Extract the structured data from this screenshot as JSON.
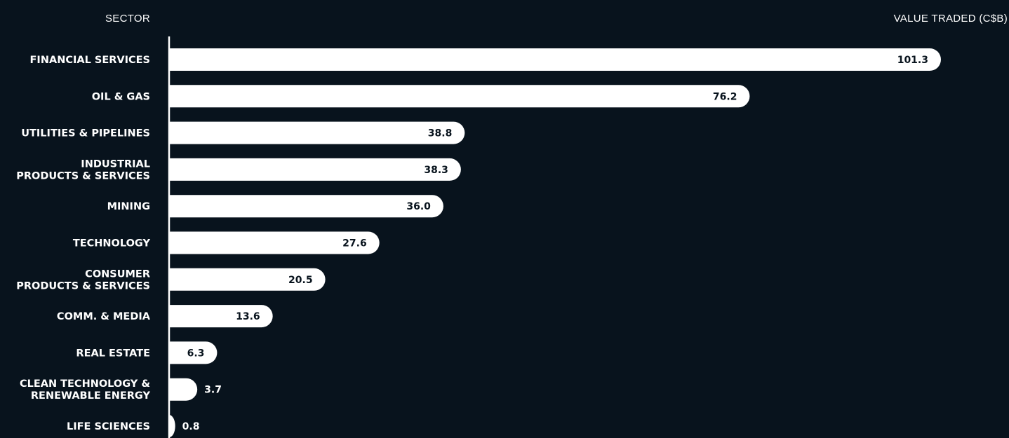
{
  "chart_data": {
    "type": "bar",
    "orientation": "horizontal",
    "category_header": "SECTOR",
    "value_header": "VALUE TRADED (C$B)",
    "categories": [
      "FINANCIAL SERVICES",
      "OIL & GAS",
      "UTILITIES & PIPELINES",
      "INDUSTRIAL\nPRODUCTS & SERVICES",
      "MINING",
      "TECHNOLOGY",
      "CONSUMER\nPRODUCTS & SERVICES",
      "COMM. & MEDIA",
      "REAL ESTATE",
      "CLEAN TECHNOLOGY &\nRENEWABLE ENERGY",
      "LIFE SCIENCES"
    ],
    "values": [
      101.3,
      76.2,
      38.8,
      38.3,
      36.0,
      27.6,
      20.5,
      13.6,
      6.3,
      3.7,
      0.8
    ],
    "value_labels": [
      "101.3",
      "76.2",
      "38.8",
      "38.3",
      "36.0",
      "27.6",
      "20.5",
      "13.6",
      "6.3",
      "3.7",
      "0.8"
    ],
    "grid": false,
    "legend": "none",
    "colors": {
      "background": "#08131d",
      "bar": "#ffffff",
      "axis": "#ffffff",
      "text": "#ffffff",
      "value_text_inside": "#08131d"
    }
  }
}
